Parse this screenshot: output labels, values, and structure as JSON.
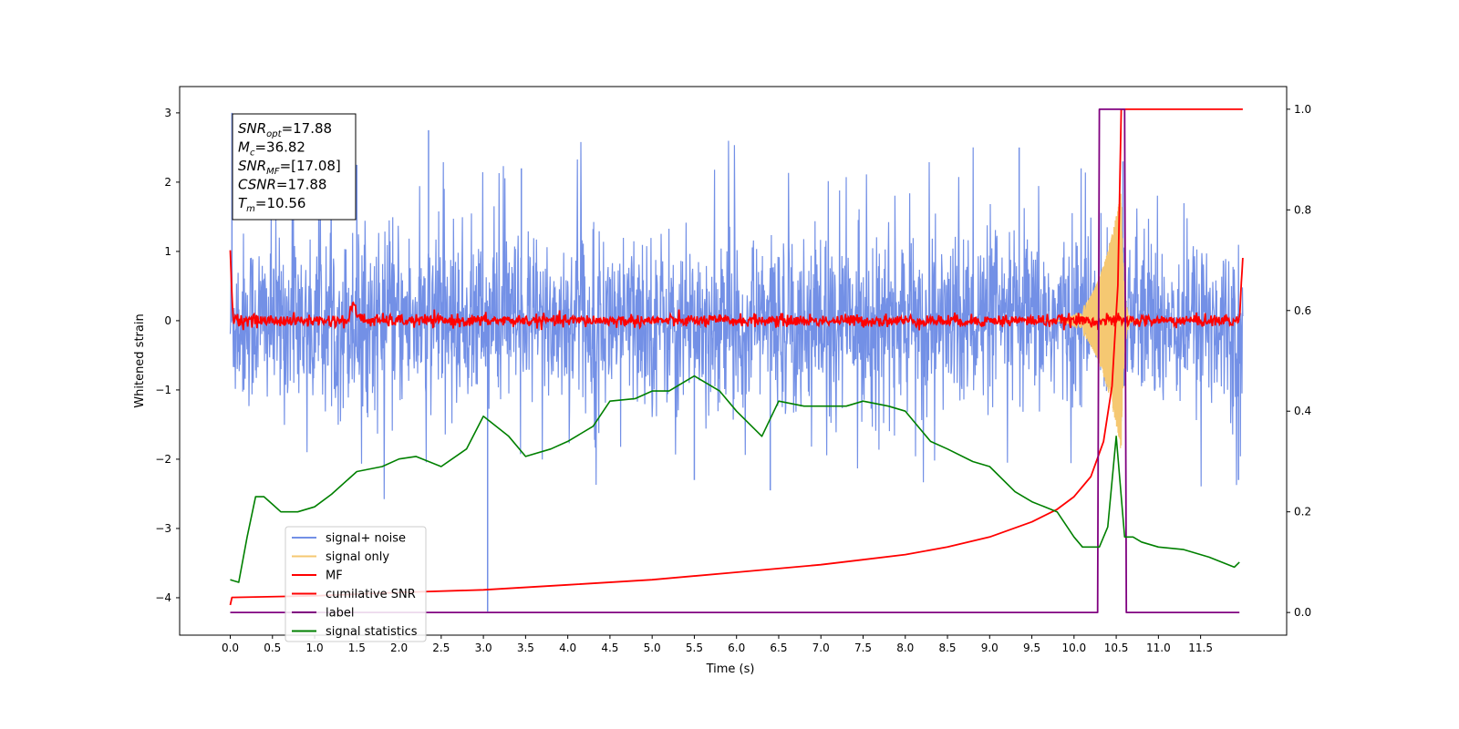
{
  "chart_data": {
    "type": "line",
    "xlabel": "Time (s)",
    "ylabel": "Whitened strain",
    "xlim": [
      -0.6,
      12.52
    ],
    "ylim": [
      -4.54,
      3.38
    ],
    "y2lim": [
      -0.045,
      1.045
    ],
    "x_ticks": [
      "0.0",
      "0.5",
      "1.0",
      "1.5",
      "2.0",
      "2.5",
      "3.0",
      "3.5",
      "4.0",
      "4.5",
      "5.0",
      "5.5",
      "6.0",
      "6.5",
      "7.0",
      "7.5",
      "8.0",
      "8.5",
      "9.0",
      "9.5",
      "10.0",
      "10.5",
      "11.0",
      "11.5"
    ],
    "y_ticks": [
      "3",
      "2",
      "1",
      "0",
      "−1",
      "−2",
      "−3",
      "−4"
    ],
    "y2_ticks": [
      "1.0",
      "0.8",
      "0.6",
      "0.4",
      "0.2",
      "0.0"
    ],
    "legend_position": "lower-left",
    "annotation": [
      {
        "name": "SNR",
        "sub": "opt",
        "value": "=17.88"
      },
      {
        "name": "M",
        "sub": "c",
        "value": "=36.82"
      },
      {
        "name": "SNR",
        "sub": "MF",
        "value": "=[17.08]"
      },
      {
        "name": "CSNR",
        "sub": "",
        "value": "=17.88"
      },
      {
        "name": "T",
        "sub": "m",
        "value": "=10.56"
      }
    ],
    "series": [
      {
        "name": "signal+ noise",
        "color": "#7390e6",
        "axis": "left",
        "noise_std": 0.62,
        "x_range": [
          0.0,
          12.0
        ],
        "peak_values": [
          3.0,
          2.75,
          2.5,
          2.3,
          2.25,
          2.2,
          -2.3,
          -2.45,
          -2.3,
          -4.2
        ]
      },
      {
        "name": "signal only",
        "color": "#f5c872",
        "axis": "left",
        "merger_time": 10.56,
        "peak_amplitude": 1.9,
        "x_range": [
          0.0,
          12.0
        ]
      },
      {
        "name": "MF",
        "color": "#ff0000",
        "axis": "left",
        "x": [
          0.0,
          0.03,
          0.1,
          1.4,
          1.45,
          1.5,
          1.6,
          11.0,
          11.96,
          12.0
        ],
        "y": [
          1.0,
          0.1,
          0.0,
          0.0,
          0.25,
          0.1,
          0.0,
          0.0,
          0.0,
          0.9
        ]
      },
      {
        "name": "cumilative SNR",
        "color": "#ff0000",
        "axis": "right",
        "x": [
          0.0,
          0.02,
          1.0,
          2.0,
          3.0,
          4.0,
          5.0,
          6.0,
          7.0,
          7.5,
          8.0,
          8.5,
          9.0,
          9.5,
          9.8,
          10.0,
          10.2,
          10.35,
          10.45,
          10.52,
          10.56,
          12.0
        ],
        "y": [
          0.015,
          0.03,
          0.033,
          0.04,
          0.045,
          0.055,
          0.065,
          0.08,
          0.095,
          0.105,
          0.115,
          0.13,
          0.15,
          0.18,
          0.205,
          0.23,
          0.27,
          0.34,
          0.45,
          0.65,
          1.0,
          1.0
        ]
      },
      {
        "name": "label",
        "color": "#800080",
        "axis": "right",
        "x": [
          0.0,
          10.28,
          10.3,
          10.6,
          10.62,
          11.96
        ],
        "y": [
          0.0,
          0.0,
          1.0,
          1.0,
          0.0,
          0.0
        ]
      },
      {
        "name": "signal statistics",
        "color": "#008000",
        "axis": "right",
        "x": [
          0.0,
          0.1,
          0.2,
          0.3,
          0.4,
          0.5,
          0.6,
          0.8,
          1.0,
          1.2,
          1.5,
          1.8,
          2.0,
          2.2,
          2.5,
          2.8,
          3.0,
          3.3,
          3.5,
          3.8,
          4.0,
          4.3,
          4.5,
          4.8,
          5.0,
          5.2,
          5.5,
          5.8,
          6.0,
          6.3,
          6.5,
          6.8,
          7.0,
          7.3,
          7.5,
          7.8,
          8.0,
          8.3,
          8.5,
          8.8,
          9.0,
          9.3,
          9.5,
          9.8,
          10.0,
          10.1,
          10.3,
          10.4,
          10.5,
          10.6,
          10.7,
          10.8,
          11.0,
          11.3,
          11.6,
          11.9,
          11.96
        ],
        "y": [
          0.065,
          0.06,
          0.15,
          0.23,
          0.23,
          0.215,
          0.2,
          0.2,
          0.21,
          0.235,
          0.28,
          0.29,
          0.305,
          0.31,
          0.29,
          0.325,
          0.39,
          0.35,
          0.31,
          0.325,
          0.34,
          0.37,
          0.42,
          0.425,
          0.44,
          0.44,
          0.47,
          0.44,
          0.4,
          0.35,
          0.42,
          0.41,
          0.41,
          0.41,
          0.42,
          0.41,
          0.4,
          0.34,
          0.325,
          0.3,
          0.29,
          0.24,
          0.22,
          0.2,
          0.15,
          0.13,
          0.13,
          0.17,
          0.35,
          0.15,
          0.15,
          0.14,
          0.13,
          0.125,
          0.11,
          0.09,
          0.1
        ]
      }
    ]
  }
}
